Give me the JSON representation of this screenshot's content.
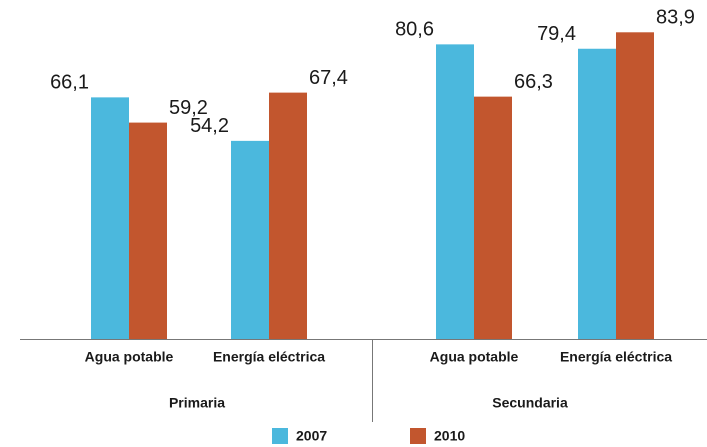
{
  "chart_data": {
    "type": "bar",
    "groups": [
      "Primaria",
      "Secundaria"
    ],
    "categories": [
      "Agua potable",
      "Energía eléctrica",
      "Agua potable",
      "Energía eléctrica"
    ],
    "series": [
      {
        "name": "2007",
        "color": "#4bb8dd",
        "values": [
          66.1,
          54.2,
          80.6,
          79.4
        ],
        "value_labels": [
          "66,1",
          "54,2",
          "80,6",
          "79,4"
        ]
      },
      {
        "name": "2010",
        "color": "#c2562e",
        "values": [
          59.2,
          67.4,
          66.3,
          83.9
        ],
        "value_labels": [
          "59,2",
          "67,4",
          "66,3",
          "83,9"
        ]
      }
    ],
    "ylim": [
      0,
      90
    ]
  }
}
